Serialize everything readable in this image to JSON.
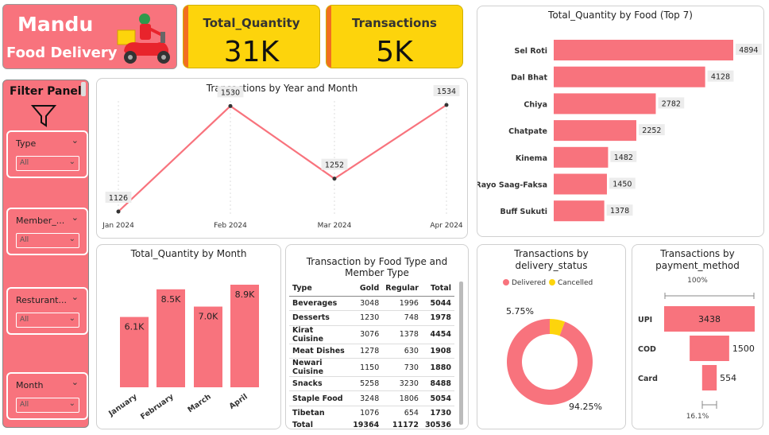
{
  "brand": {
    "line1": "Mandu",
    "line2": "Food Delivery"
  },
  "kpis": [
    {
      "label": "Total_Quantity",
      "value": "31K"
    },
    {
      "label": "Transactions",
      "value": "5K"
    }
  ],
  "filter_panel": {
    "title": "Filter Panel",
    "slicers": [
      {
        "label": "Type",
        "value": "All"
      },
      {
        "label": "Member_...",
        "value": "All"
      },
      {
        "label": "Resturant...",
        "value": "All"
      },
      {
        "label": "Month",
        "value": "All"
      }
    ]
  },
  "line_chart": {
    "title": "Transactions by Year and Month",
    "chart_data": {
      "type": "line",
      "categories": [
        "Jan 2024",
        "Feb 2024",
        "Mar 2024",
        "Apr 2024"
      ],
      "values": [
        1126,
        1530,
        1252,
        1534
      ],
      "labels": [
        "1126",
        "1530",
        "1252",
        "1534"
      ],
      "color": "#f8737d"
    }
  },
  "hbar_chart": {
    "title": "Total_Quantity by Food (Top 7)",
    "chart_data": {
      "type": "bar",
      "orientation": "horizontal",
      "categories": [
        "Sel Roti",
        "Dal Bhat",
        "Chiya",
        "Chatpate",
        "Kinema",
        "Rayo Saag-Faksa",
        "Buff Sukuti"
      ],
      "values": [
        4894,
        4128,
        2782,
        2252,
        1482,
        1450,
        1378
      ],
      "labels": [
        "4894",
        "4128",
        "2782",
        "2252",
        "1482",
        "1450",
        "1378"
      ],
      "color": "#f8737d"
    }
  },
  "month_chart": {
    "title": "Total_Quantity by Month",
    "chart_data": {
      "type": "bar",
      "categories": [
        "January",
        "February",
        "March",
        "April"
      ],
      "values": [
        6.1,
        8.5,
        7.0,
        8.9
      ],
      "labels": [
        "6.1K",
        "8.5K",
        "7.0K",
        "8.9K"
      ],
      "unit": "K",
      "color": "#f8737d"
    }
  },
  "table": {
    "title": "Transaction by Food Type and Member Type",
    "columns": [
      "Type",
      "Gold",
      "Regular",
      "Total"
    ],
    "rows": [
      [
        "Beverages",
        "3048",
        "1996",
        "5044"
      ],
      [
        "Desserts",
        "1230",
        "748",
        "1978"
      ],
      [
        "Kirat Cuisine",
        "3076",
        "1378",
        "4454"
      ],
      [
        "Meat Dishes",
        "1278",
        "630",
        "1908"
      ],
      [
        "Newari Cuisine",
        "1150",
        "730",
        "1880"
      ],
      [
        "Snacks",
        "5258",
        "3230",
        "8488"
      ],
      [
        "Staple Food",
        "3248",
        "1806",
        "5054"
      ],
      [
        "Tibetan",
        "1076",
        "654",
        "1730"
      ]
    ],
    "total": [
      "Total",
      "19364",
      "11172",
      "30536"
    ]
  },
  "donut_chart": {
    "title": "Transactions by delivery_status",
    "chart_data": {
      "type": "pie",
      "categories": [
        "Delivered",
        "Cancelled"
      ],
      "values": [
        94.25,
        5.75
      ],
      "labels": [
        "94.25%",
        "5.75%"
      ],
      "colors": [
        "#f8737d",
        "#fdd40c"
      ],
      "legend": "top"
    }
  },
  "funnel_chart": {
    "title": "Transactions by payment_method",
    "top_label": "100%",
    "bottom_label": "16.1%",
    "chart_data": {
      "type": "bar",
      "subtype": "funnel",
      "categories": [
        "UPI",
        "COD",
        "Card"
      ],
      "values": [
        3438,
        1500,
        554
      ],
      "labels": [
        "3438",
        "1500",
        "554"
      ],
      "color": "#f8737d"
    }
  }
}
